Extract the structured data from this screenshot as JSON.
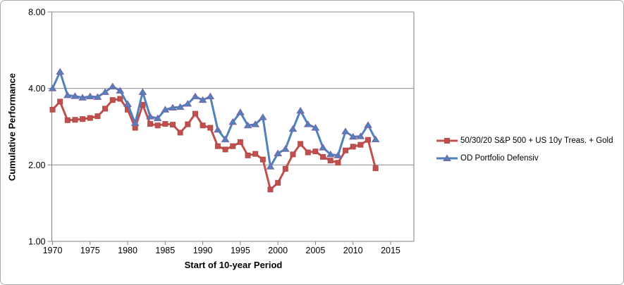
{
  "chart_data": {
    "type": "line",
    "title": "",
    "xlabel": "Start of 10-year Period",
    "ylabel": "Cumulative Performance",
    "y_scale": "log2",
    "ylim": [
      1.0,
      8.0
    ],
    "grid": true,
    "legend_position": "right",
    "y_ticks": [
      {
        "value": 1,
        "label": "1.00"
      },
      {
        "value": 2,
        "label": "2.00"
      },
      {
        "value": 4,
        "label": "4.00"
      },
      {
        "value": 8,
        "label": "8.00"
      }
    ],
    "x_ticks": [
      1970,
      1975,
      1980,
      1985,
      1990,
      1995,
      2000,
      2005,
      2010,
      2015
    ],
    "x": [
      1970,
      1971,
      1972,
      1973,
      1974,
      1975,
      1976,
      1977,
      1978,
      1979,
      1980,
      1981,
      1982,
      1983,
      1984,
      1985,
      1986,
      1987,
      1988,
      1989,
      1990,
      1991,
      1992,
      1993,
      1994,
      1995,
      1996,
      1997,
      1998,
      1999,
      2000,
      2001,
      2002,
      2003,
      2004,
      2005,
      2006,
      2007,
      2008,
      2009,
      2010,
      2011,
      2012,
      2013
    ],
    "series": [
      {
        "name": "50/30/20 S&P 500 + US 10y Treas. + Gold",
        "color": "#C0504D",
        "marker": "square",
        "marker_edge": "#B04A47",
        "values": [
          3.3,
          3.55,
          3.0,
          3.01,
          3.03,
          3.06,
          3.11,
          3.33,
          3.6,
          3.64,
          3.3,
          2.8,
          3.45,
          2.9,
          2.86,
          2.9,
          2.88,
          2.68,
          2.89,
          3.18,
          2.86,
          2.8,
          2.37,
          2.3,
          2.37,
          2.46,
          2.18,
          2.21,
          2.1,
          1.6,
          1.7,
          1.93,
          2.2,
          2.42,
          2.24,
          2.26,
          2.15,
          2.08,
          2.04,
          2.28,
          2.36,
          2.4,
          2.51,
          1.94
        ]
      },
      {
        "name": "OD Portfolio Defensiv",
        "color": "#4F81BD",
        "marker": "triangle",
        "marker_edge": "#8064A2",
        "values": [
          4.0,
          4.65,
          3.76,
          3.73,
          3.68,
          3.72,
          3.7,
          3.87,
          4.07,
          3.92,
          3.47,
          2.92,
          3.87,
          3.1,
          3.05,
          3.3,
          3.36,
          3.38,
          3.48,
          3.72,
          3.6,
          3.72,
          2.75,
          2.52,
          2.95,
          3.22,
          2.86,
          2.89,
          3.08,
          1.97,
          2.22,
          2.31,
          2.77,
          3.27,
          2.89,
          2.8,
          2.34,
          2.2,
          2.18,
          2.71,
          2.58,
          2.59,
          2.87,
          2.52
        ]
      }
    ]
  },
  "styles": {
    "axis_color": "#808080",
    "grid_color": "#8c8c8c",
    "text_color": "#000000",
    "frame_border_color": "#ababab"
  }
}
